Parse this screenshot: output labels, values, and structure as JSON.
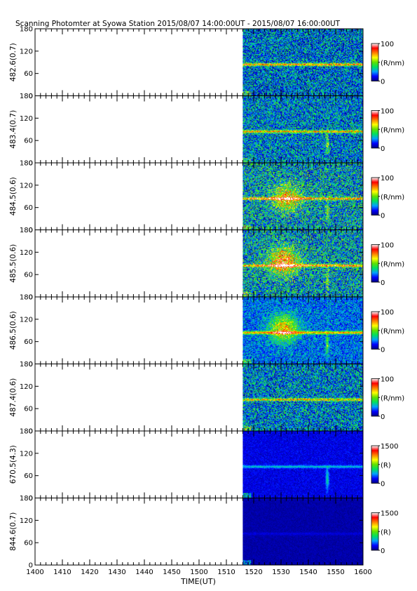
{
  "chart_data": {
    "type": "heatmap",
    "title": "Scanning Photomter at Syowa Station  2015/08/07 14:00:00UT - 2015/08/07 16:00:00UT",
    "xlabel": "TIME(UT)",
    "x_ticks": [
      "1400",
      "1410",
      "1420",
      "1430",
      "1440",
      "1450",
      "1500",
      "1510",
      "1520",
      "1530",
      "1540",
      "1550",
      "1600"
    ],
    "x_range_minutes": [
      0,
      120
    ],
    "data_start_minute": 76,
    "y_ticks": [
      0,
      60,
      120,
      180
    ],
    "ylim": [
      0,
      180
    ],
    "panels": [
      {
        "name": "482.6(0.7)",
        "cmax": "100",
        "cmin": "0",
        "unit": "(R/nm)",
        "max_value": 100,
        "features": {
          "band_y": 84,
          "band_intensity": 0.52,
          "background": 0.22,
          "noise": 0.5,
          "diffuse": [],
          "spike_minute": null
        }
      },
      {
        "name": "483.4(0.7)",
        "cmax": "100",
        "cmin": "0",
        "unit": "(R/nm)",
        "max_value": 100,
        "features": {
          "band_y": 84,
          "band_intensity": 0.45,
          "background": 0.24,
          "noise": 0.48,
          "diffuse": [],
          "spike_minute": 107
        }
      },
      {
        "name": "484.5(0.6)",
        "cmax": "100",
        "cmin": "0",
        "unit": "(R/nm)",
        "max_value": 100,
        "features": {
          "band_y": 84,
          "band_intensity": 0.48,
          "background": 0.28,
          "noise": 0.55,
          "diffuse": [
            {
              "minute": 92,
              "y": 85,
              "intensity": 0.42
            }
          ],
          "spike_minute": 107
        }
      },
      {
        "name": "485.5(0.6)",
        "cmax": "100",
        "cmin": "0",
        "unit": "(R/nm)",
        "max_value": 100,
        "features": {
          "band_y": 84,
          "band_intensity": 0.5,
          "background": 0.28,
          "noise": 0.55,
          "diffuse": [
            {
              "minute": 91,
              "y": 95,
              "intensity": 0.55
            }
          ],
          "spike_minute": 107
        }
      },
      {
        "name": "486.5(0.6)",
        "cmax": "100",
        "cmin": "0",
        "unit": "(R/nm)",
        "max_value": 100,
        "features": {
          "band_y": 84,
          "band_intensity": 0.48,
          "background": 0.22,
          "noise": 0.32,
          "diffuse": [
            {
              "minute": 91,
              "y": 95,
              "intensity": 0.45
            }
          ],
          "spike_minute": 107
        }
      },
      {
        "name": "487.4(0.6)",
        "cmax": "100",
        "cmin": "0",
        "unit": "(R/nm)",
        "max_value": 100,
        "features": {
          "band_y": 84,
          "band_intensity": 0.42,
          "background": 0.24,
          "noise": 0.5,
          "diffuse": [],
          "spike_minute": null
        }
      },
      {
        "name": "670.5(4.3)",
        "cmax": "1500",
        "cmin": "0",
        "unit": "(R)",
        "max_value": 1500,
        "features": {
          "band_y": 84,
          "band_intensity": 0.2,
          "background": 0.1,
          "noise": 0.12,
          "diffuse": [],
          "spike_minute": 107
        }
      },
      {
        "name": "844.6(0.7)",
        "cmax": "1500",
        "cmin": "0",
        "unit": "(R)",
        "max_value": 1500,
        "features": {
          "band_y": 84,
          "band_intensity": 0.05,
          "background": 0.04,
          "noise": 0.06,
          "diffuse": [],
          "spike_minute": null
        }
      }
    ],
    "colormap": [
      "#000080",
      "#0000ff",
      "#00a0ff",
      "#00e060",
      "#60e000",
      "#ffff00",
      "#ff8000",
      "#ff0000",
      "#ffffff"
    ]
  }
}
